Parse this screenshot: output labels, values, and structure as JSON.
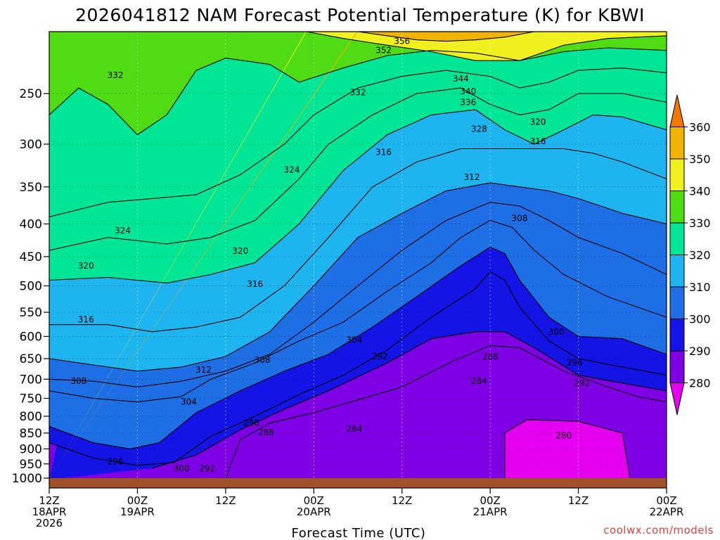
{
  "chart_data": {
    "type": "heatmap",
    "title": "2026041812 NAM Forecast Potential Temperature (K) for KBWI",
    "xlabel": "Forecast Time (UTC)",
    "ylabel": "",
    "credit": "coolwx.com/models",
    "y_scale": "log",
    "y_inverted": true,
    "ylim": [
      1000,
      200
    ],
    "y_ticks": [
      250,
      300,
      350,
      400,
      450,
      500,
      550,
      600,
      650,
      700,
      750,
      800,
      850,
      900,
      950,
      1000
    ],
    "x_ticks": [
      {
        "hour": 0,
        "line1": "12Z",
        "line2": "18APR",
        "line3": "2026"
      },
      {
        "hour": 12,
        "line1": "00Z",
        "line2": "19APR",
        "line3": ""
      },
      {
        "hour": 24,
        "line1": "12Z",
        "line2": "",
        "line3": ""
      },
      {
        "hour": 36,
        "line1": "00Z",
        "line2": "20APR",
        "line3": ""
      },
      {
        "hour": 48,
        "line1": "12Z",
        "line2": "",
        "line3": ""
      },
      {
        "hour": 60,
        "line1": "00Z",
        "line2": "21APR",
        "line3": ""
      },
      {
        "hour": 72,
        "line1": "12Z",
        "line2": "",
        "line3": ""
      },
      {
        "hour": 84,
        "line1": "00Z",
        "line2": "22APR",
        "line3": ""
      }
    ],
    "colorbar": {
      "levels": [
        280,
        290,
        300,
        310,
        320,
        330,
        340,
        350,
        360
      ],
      "colors": [
        "#e600f0",
        "#8000e6",
        "#1414e6",
        "#1e6ee6",
        "#1eb4f0",
        "#00e696",
        "#50dc14",
        "#f0f01e",
        "#f0b400",
        "#f07800"
      ]
    },
    "grid": true,
    "series": [
      {
        "name": "280",
        "points": [
          [
            62,
            1000
          ],
          [
            62,
            850
          ],
          [
            65,
            810
          ],
          [
            72,
            815
          ],
          [
            78,
            850
          ],
          [
            79,
            1000
          ]
        ]
      },
      {
        "name": "288",
        "points": [
          [
            24,
            1000
          ],
          [
            26,
            870
          ],
          [
            30,
            820
          ],
          [
            36,
            790
          ],
          [
            48,
            720
          ],
          [
            55,
            655
          ],
          [
            60,
            620
          ],
          [
            64,
            625
          ],
          [
            70,
            680
          ],
          [
            76,
            720
          ],
          [
            80,
            745
          ],
          [
            84,
            760
          ]
        ]
      },
      {
        "name": "292",
        "points": [
          [
            14,
            965
          ],
          [
            20,
            920
          ],
          [
            26,
            840
          ],
          [
            32,
            780
          ],
          [
            38,
            730
          ],
          [
            46,
            660
          ],
          [
            52,
            605
          ],
          [
            58,
            590
          ],
          [
            62,
            590
          ],
          [
            66,
            625
          ],
          [
            72,
            690
          ],
          [
            78,
            710
          ],
          [
            84,
            730
          ]
        ]
      },
      {
        "name": "296",
        "points": [
          [
            0,
            880
          ],
          [
            6,
            930
          ],
          [
            12,
            955
          ],
          [
            17,
            945
          ],
          [
            22,
            860
          ],
          [
            28,
            800
          ],
          [
            34,
            740
          ],
          [
            40,
            690
          ],
          [
            46,
            630
          ],
          [
            52,
            560
          ],
          [
            58,
            505
          ],
          [
            60,
            475
          ],
          [
            62,
            490
          ],
          [
            64,
            540
          ],
          [
            68,
            610
          ],
          [
            72,
            650
          ],
          [
            78,
            670
          ],
          [
            84,
            690
          ]
        ]
      },
      {
        "name": "300",
        "points": [
          [
            0,
            830
          ],
          [
            6,
            880
          ],
          [
            11,
            900
          ],
          [
            15,
            880
          ],
          [
            20,
            790
          ],
          [
            26,
            730
          ],
          [
            32,
            680
          ],
          [
            38,
            640
          ],
          [
            44,
            580
          ],
          [
            50,
            520
          ],
          [
            56,
            465
          ],
          [
            60,
            435
          ],
          [
            62,
            445
          ],
          [
            64,
            490
          ],
          [
            68,
            560
          ],
          [
            72,
            600
          ],
          [
            78,
            605
          ],
          [
            84,
            640
          ]
        ]
      },
      {
        "name": "304",
        "points": [
          [
            0,
            730
          ],
          [
            6,
            750
          ],
          [
            12,
            760
          ],
          [
            18,
            745
          ],
          [
            22,
            700
          ],
          [
            28,
            660
          ],
          [
            34,
            610
          ],
          [
            40,
            570
          ],
          [
            46,
            510
          ],
          [
            52,
            460
          ],
          [
            56,
            420
          ],
          [
            60,
            395
          ],
          [
            63,
            405
          ],
          [
            66,
            440
          ],
          [
            70,
            480
          ],
          [
            76,
            520
          ],
          [
            84,
            560
          ]
        ]
      },
      {
        "name": "308",
        "points": [
          [
            0,
            700
          ],
          [
            6,
            705
          ],
          [
            12,
            720
          ],
          [
            18,
            705
          ],
          [
            24,
            680
          ],
          [
            30,
            640
          ],
          [
            36,
            570
          ],
          [
            42,
            500
          ],
          [
            48,
            440
          ],
          [
            54,
            395
          ],
          [
            60,
            370
          ],
          [
            64,
            375
          ],
          [
            68,
            395
          ],
          [
            72,
            420
          ],
          [
            78,
            445
          ],
          [
            84,
            480
          ]
        ]
      },
      {
        "name": "312",
        "points": [
          [
            0,
            650
          ],
          [
            6,
            665
          ],
          [
            12,
            680
          ],
          [
            18,
            670
          ],
          [
            24,
            645
          ],
          [
            30,
            590
          ],
          [
            36,
            500
          ],
          [
            42,
            420
          ],
          [
            48,
            385
          ],
          [
            54,
            355
          ],
          [
            60,
            345
          ],
          [
            64,
            350
          ],
          [
            68,
            355
          ],
          [
            72,
            365
          ],
          [
            78,
            385
          ],
          [
            84,
            400
          ]
        ]
      },
      {
        "name": "316",
        "points": [
          [
            0,
            575
          ],
          [
            8,
            575
          ],
          [
            14,
            590
          ],
          [
            20,
            580
          ],
          [
            26,
            560
          ],
          [
            32,
            500
          ],
          [
            38,
            420
          ],
          [
            44,
            350
          ],
          [
            50,
            320
          ],
          [
            56,
            305
          ],
          [
            62,
            305
          ],
          [
            66,
            305
          ],
          [
            70,
            305
          ],
          [
            74,
            310
          ],
          [
            78,
            320
          ],
          [
            84,
            340
          ]
        ]
      },
      {
        "name": "320",
        "points": [
          [
            0,
            490
          ],
          [
            8,
            485
          ],
          [
            16,
            495
          ],
          [
            22,
            480
          ],
          [
            28,
            460
          ],
          [
            34,
            400
          ],
          [
            40,
            330
          ],
          [
            46,
            290
          ],
          [
            52,
            270
          ],
          [
            58,
            265
          ],
          [
            62,
            285
          ],
          [
            66,
            300
          ],
          [
            70,
            285
          ],
          [
            74,
            270
          ],
          [
            78,
            272
          ],
          [
            84,
            285
          ]
        ]
      },
      {
        "name": "324",
        "points": [
          [
            0,
            440
          ],
          [
            8,
            420
          ],
          [
            16,
            430
          ],
          [
            22,
            420
          ],
          [
            28,
            395
          ],
          [
            34,
            340
          ],
          [
            38,
            300
          ],
          [
            44,
            270
          ],
          [
            50,
            250
          ],
          [
            56,
            245
          ],
          [
            60,
            260
          ],
          [
            64,
            270
          ],
          [
            68,
            265
          ],
          [
            72,
            250
          ],
          [
            78,
            250
          ],
          [
            84,
            258
          ]
        ]
      },
      {
        "name": "328",
        "points": [
          [
            0,
            390
          ],
          [
            8,
            370
          ],
          [
            14,
            365
          ],
          [
            20,
            360
          ],
          [
            26,
            335
          ],
          [
            32,
            300
          ],
          [
            36,
            270
          ],
          [
            42,
            245
          ],
          [
            48,
            235
          ],
          [
            54,
            230
          ],
          [
            60,
            235
          ],
          [
            64,
            245
          ],
          [
            68,
            240
          ],
          [
            72,
            230
          ],
          [
            78,
            228
          ],
          [
            84,
            232
          ]
        ]
      },
      {
        "name": "332",
        "points": [
          [
            0,
            270
          ],
          [
            4,
            245
          ],
          [
            8,
            260
          ],
          [
            12,
            290
          ],
          [
            16,
            270
          ],
          [
            20,
            230
          ],
          [
            24,
            220
          ],
          [
            30,
            225
          ],
          [
            34,
            240
          ],
          [
            40,
            228
          ],
          [
            46,
            218
          ],
          [
            52,
            214
          ],
          [
            58,
            216
          ],
          [
            64,
            222
          ],
          [
            70,
            215
          ],
          [
            76,
            212
          ],
          [
            84,
            214
          ]
        ]
      },
      {
        "name": "340",
        "points": [
          [
            35,
            200
          ],
          [
            40,
            205
          ],
          [
            46,
            210
          ],
          [
            52,
            215
          ],
          [
            58,
            222
          ],
          [
            64,
            222
          ],
          [
            70,
            210
          ],
          [
            76,
            205
          ],
          [
            84,
            203
          ]
        ]
      },
      {
        "name": "352",
        "points": [
          [
            42,
            200
          ],
          [
            46,
            203
          ],
          [
            50,
            206
          ],
          [
            54,
            207
          ],
          [
            58,
            206
          ],
          [
            62,
            204
          ],
          [
            66,
            200
          ]
        ]
      }
    ],
    "contour_labels": [
      {
        "value": "356",
        "hour": 48,
        "p": 207
      },
      {
        "value": "352",
        "hour": 45.5,
        "p": 214
      },
      {
        "value": "344",
        "hour": 56,
        "p": 237
      },
      {
        "value": "340",
        "hour": 57,
        "p": 248
      },
      {
        "value": "336",
        "hour": 57,
        "p": 258
      },
      {
        "value": "332",
        "hour": 42,
        "p": 249
      },
      {
        "value": "332",
        "hour": 9,
        "p": 234
      },
      {
        "value": "328",
        "hour": 58.5,
        "p": 284
      },
      {
        "value": "320",
        "hour": 66.5,
        "p": 277
      },
      {
        "value": "316",
        "hour": 45.5,
        "p": 309
      },
      {
        "value": "316",
        "hour": 66.5,
        "p": 297
      },
      {
        "value": "312",
        "hour": 57.5,
        "p": 338
      },
      {
        "value": "324",
        "hour": 33,
        "p": 329
      },
      {
        "value": "308",
        "hour": 64,
        "p": 392
      },
      {
        "value": "324",
        "hour": 10,
        "p": 410
      },
      {
        "value": "320",
        "hour": 26,
        "p": 441
      },
      {
        "value": "320",
        "hour": 5,
        "p": 465
      },
      {
        "value": "316",
        "hour": 28,
        "p": 497
      },
      {
        "value": "316",
        "hour": 5,
        "p": 565
      },
      {
        "value": "300",
        "hour": 69,
        "p": 590
      },
      {
        "value": "304",
        "hour": 41.5,
        "p": 608
      },
      {
        "value": "288",
        "hour": 60,
        "p": 646
      },
      {
        "value": "296",
        "hour": 71.5,
        "p": 660
      },
      {
        "value": "292",
        "hour": 45,
        "p": 645
      },
      {
        "value": "308",
        "hour": 29,
        "p": 653
      },
      {
        "value": "312",
        "hour": 21,
        "p": 677
      },
      {
        "value": "284",
        "hour": 58.5,
        "p": 705
      },
      {
        "value": "292",
        "hour": 72.5,
        "p": 710
      },
      {
        "value": "308",
        "hour": 4,
        "p": 705
      },
      {
        "value": "304",
        "hour": 19,
        "p": 760
      },
      {
        "value": "296",
        "hour": 27.5,
        "p": 820
      },
      {
        "value": "288",
        "hour": 29.5,
        "p": 848
      },
      {
        "value": "284",
        "hour": 41.5,
        "p": 837
      },
      {
        "value": "280",
        "hour": 70,
        "p": 858
      },
      {
        "value": "296",
        "hour": 9,
        "p": 942
      },
      {
        "value": "300",
        "hour": 18,
        "p": 966
      },
      {
        "value": "292",
        "hour": 21.5,
        "p": 966
      }
    ]
  }
}
